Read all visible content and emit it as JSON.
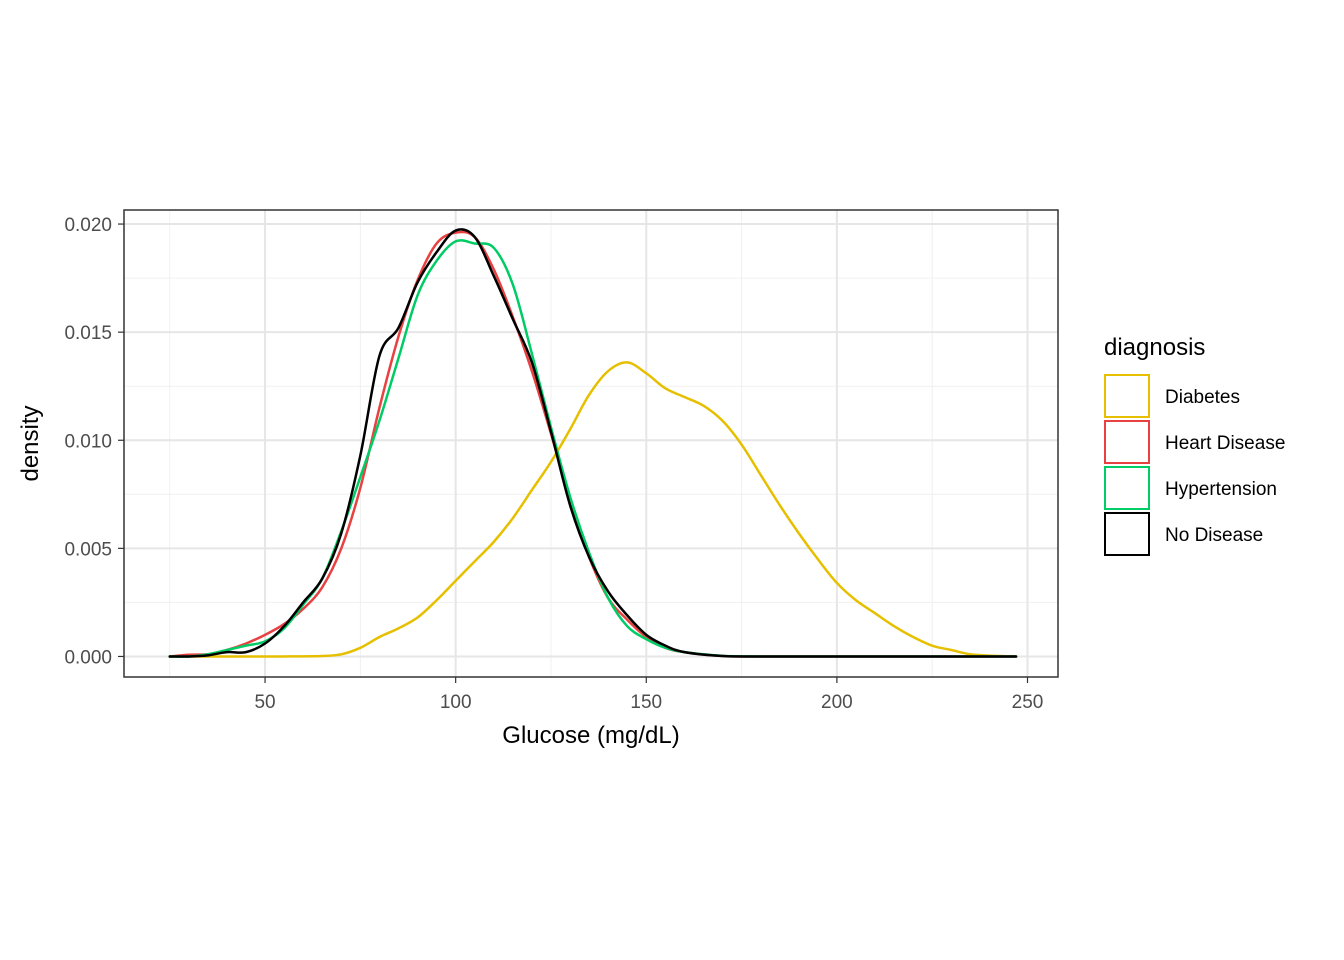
{
  "chart_data": {
    "type": "line",
    "title": "",
    "xlabel": "Glucose (mg/dL)",
    "ylabel": "density",
    "xlim": [
      13,
      258
    ],
    "ylim": [
      -0.00095,
      0.02065
    ],
    "x_ticks": [
      50,
      100,
      150,
      200,
      250
    ],
    "y_ticks": [
      0.0,
      0.005,
      0.01,
      0.015,
      0.02
    ],
    "x_tick_labels": [
      "50",
      "100",
      "150",
      "200",
      "250"
    ],
    "y_tick_labels": [
      "0.000",
      "0.005",
      "0.010",
      "0.015",
      "0.020"
    ],
    "grid": true,
    "legend": {
      "title": "diagnosis",
      "placement": "right"
    },
    "series": [
      {
        "name": "Diabetes",
        "color": "#E6C000",
        "points": [
          [
            25,
            0.0
          ],
          [
            40,
            0.0
          ],
          [
            55,
            0.0
          ],
          [
            65,
            2e-05
          ],
          [
            70,
            0.0001
          ],
          [
            75,
            0.0004
          ],
          [
            80,
            0.0009
          ],
          [
            85,
            0.0013
          ],
          [
            90,
            0.0018
          ],
          [
            95,
            0.0026
          ],
          [
            100,
            0.0035
          ],
          [
            105,
            0.0044
          ],
          [
            110,
            0.0053
          ],
          [
            115,
            0.0064
          ],
          [
            120,
            0.0077
          ],
          [
            125,
            0.009
          ],
          [
            130,
            0.0105
          ],
          [
            135,
            0.0121
          ],
          [
            140,
            0.0132
          ],
          [
            145,
            0.0136
          ],
          [
            150,
            0.0131
          ],
          [
            155,
            0.0124
          ],
          [
            160,
            0.012
          ],
          [
            165,
            0.0116
          ],
          [
            170,
            0.0109
          ],
          [
            175,
            0.0098
          ],
          [
            180,
            0.0084
          ],
          [
            185,
            0.007
          ],
          [
            190,
            0.0057
          ],
          [
            195,
            0.0045
          ],
          [
            200,
            0.0034
          ],
          [
            205,
            0.0026
          ],
          [
            210,
            0.002
          ],
          [
            215,
            0.0014
          ],
          [
            220,
            0.0009
          ],
          [
            225,
            0.0005
          ],
          [
            230,
            0.0003
          ],
          [
            235,
            0.0001
          ],
          [
            240,
            4e-05
          ],
          [
            247,
            0.0
          ]
        ]
      },
      {
        "name": "Heart Disease",
        "color": "#E84141",
        "points": [
          [
            25,
            0.0
          ],
          [
            30,
            8e-05
          ],
          [
            35,
            0.0001
          ],
          [
            40,
            0.0003
          ],
          [
            45,
            0.0006
          ],
          [
            50,
            0.001
          ],
          [
            55,
            0.0015
          ],
          [
            60,
            0.0022
          ],
          [
            65,
            0.0032
          ],
          [
            70,
            0.005
          ],
          [
            75,
            0.0078
          ],
          [
            80,
            0.0115
          ],
          [
            85,
            0.0148
          ],
          [
            90,
            0.0174
          ],
          [
            95,
            0.0191
          ],
          [
            100,
            0.0196
          ],
          [
            105,
            0.0194
          ],
          [
            110,
            0.0179
          ],
          [
            115,
            0.0157
          ],
          [
            120,
            0.0132
          ],
          [
            125,
            0.0103
          ],
          [
            130,
            0.0072
          ],
          [
            135,
            0.0046
          ],
          [
            140,
            0.0027
          ],
          [
            145,
            0.0017
          ],
          [
            150,
            0.0009
          ],
          [
            155,
            0.0004
          ],
          [
            160,
            0.0002
          ],
          [
            170,
            2e-05
          ],
          [
            180,
            0.0
          ],
          [
            200,
            0.0
          ],
          [
            220,
            0.0
          ],
          [
            247,
            0.0
          ]
        ]
      },
      {
        "name": "Hypertension",
        "color": "#00CC66",
        "points": [
          [
            25,
            0.0
          ],
          [
            30,
            0.0
          ],
          [
            35,
            0.0001
          ],
          [
            40,
            0.0003
          ],
          [
            45,
            0.0005
          ],
          [
            50,
            0.0007
          ],
          [
            55,
            0.0013
          ],
          [
            60,
            0.0024
          ],
          [
            65,
            0.0036
          ],
          [
            70,
            0.0058
          ],
          [
            75,
            0.0083
          ],
          [
            80,
            0.0109
          ],
          [
            85,
            0.0138
          ],
          [
            90,
            0.0167
          ],
          [
            95,
            0.0183
          ],
          [
            100,
            0.0192
          ],
          [
            105,
            0.0191
          ],
          [
            110,
            0.0189
          ],
          [
            115,
            0.0172
          ],
          [
            120,
            0.014
          ],
          [
            125,
            0.0106
          ],
          [
            130,
            0.0074
          ],
          [
            135,
            0.0048
          ],
          [
            140,
            0.0027
          ],
          [
            145,
            0.0014
          ],
          [
            150,
            0.0008
          ],
          [
            155,
            0.0004
          ],
          [
            160,
            0.0002
          ],
          [
            170,
            3e-05
          ],
          [
            180,
            0.0
          ],
          [
            200,
            0.0
          ],
          [
            220,
            0.0
          ],
          [
            247,
            0.0
          ]
        ]
      },
      {
        "name": "No Disease",
        "color": "#000000",
        "points": [
          [
            25,
            0.0
          ],
          [
            30,
            0.0
          ],
          [
            35,
            5e-05
          ],
          [
            40,
            0.0002
          ],
          [
            45,
            0.0002
          ],
          [
            50,
            0.0006
          ],
          [
            55,
            0.0014
          ],
          [
            60,
            0.0025
          ],
          [
            65,
            0.0036
          ],
          [
            70,
            0.0057
          ],
          [
            75,
            0.0093
          ],
          [
            80,
            0.0139
          ],
          [
            85,
            0.0152
          ],
          [
            90,
            0.0173
          ],
          [
            95,
            0.0187
          ],
          [
            100,
            0.0197
          ],
          [
            105,
            0.0194
          ],
          [
            110,
            0.0176
          ],
          [
            115,
            0.0156
          ],
          [
            120,
            0.0136
          ],
          [
            125,
            0.0104
          ],
          [
            130,
            0.007
          ],
          [
            135,
            0.0046
          ],
          [
            140,
            0.003
          ],
          [
            145,
            0.0019
          ],
          [
            150,
            0.001
          ],
          [
            155,
            0.0005
          ],
          [
            160,
            0.0002
          ],
          [
            170,
            2e-05
          ],
          [
            180,
            0.0
          ],
          [
            200,
            0.0
          ],
          [
            220,
            0.0
          ],
          [
            247,
            0.0
          ]
        ]
      }
    ]
  }
}
